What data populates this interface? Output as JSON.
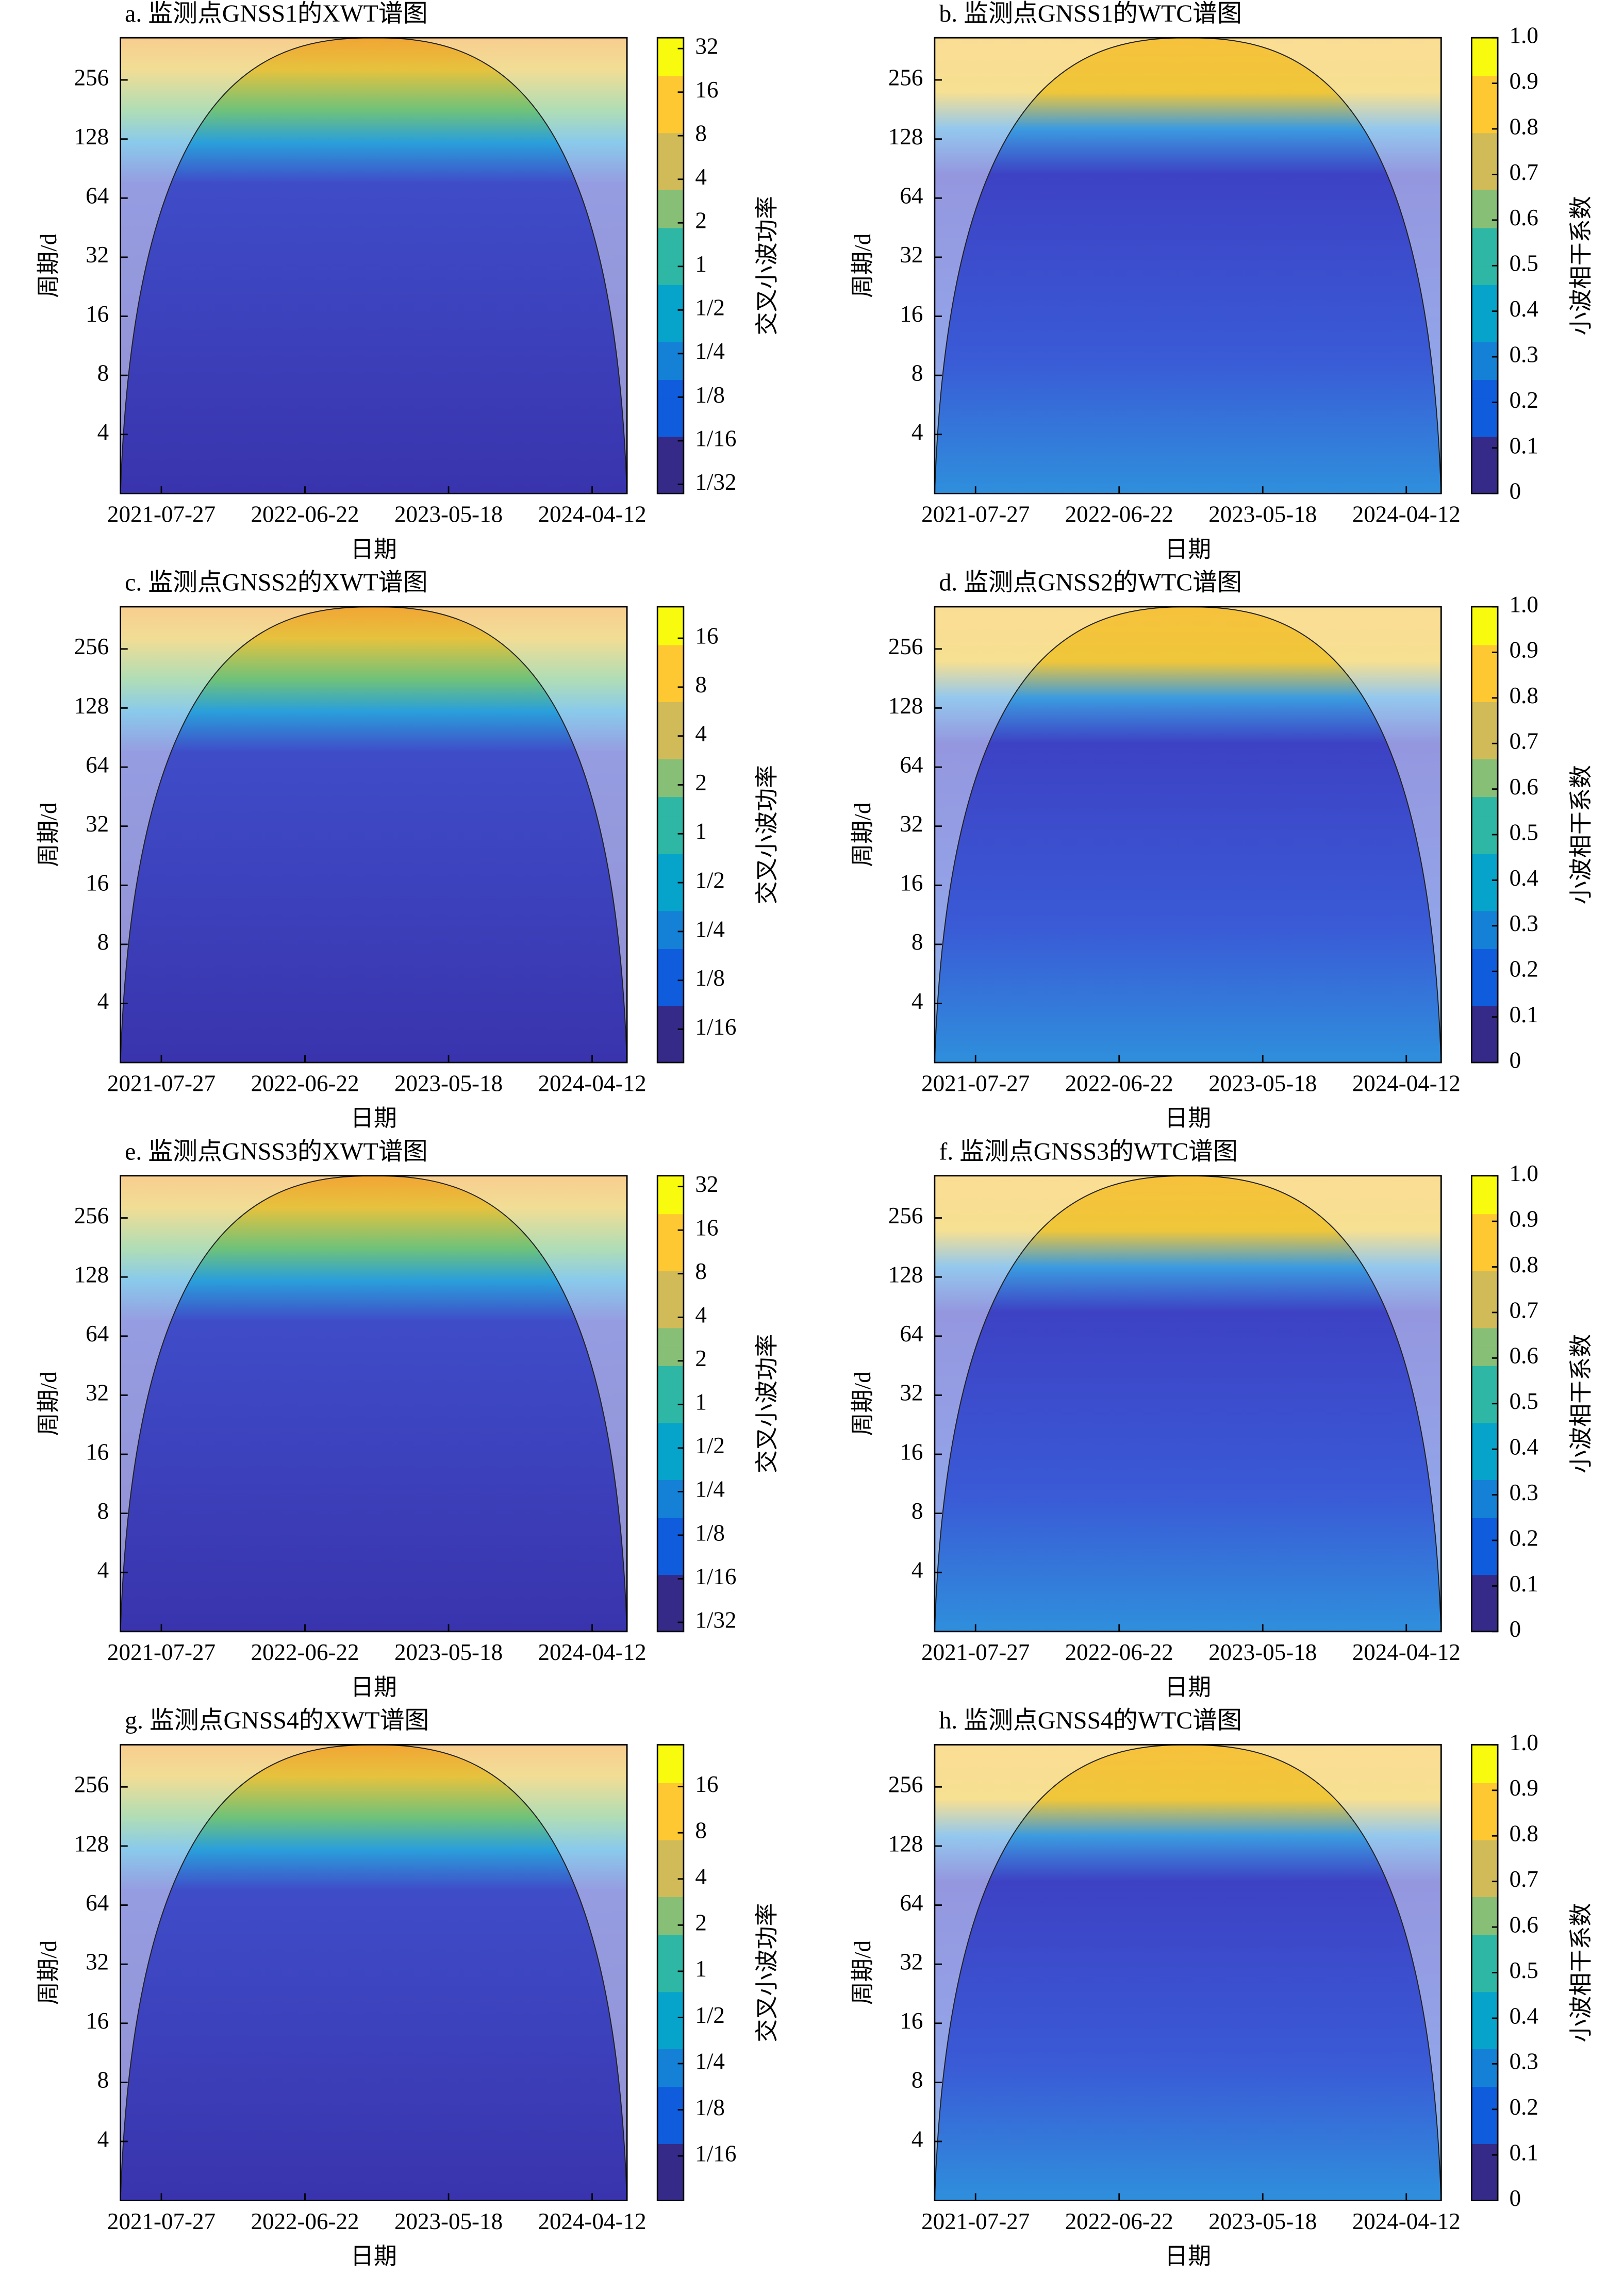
{
  "chart_data": [
    {
      "type": "heatmap",
      "title": "a. 监测点GNSS1的XWT谱图",
      "xlabel": "日期",
      "ylabel": "周期/d",
      "xlim": [
        "2021-04-24",
        "2024-07-01"
      ],
      "xticks": [
        "2021-07-27",
        "2022-06-22",
        "2023-05-18",
        "2024-04-12"
      ],
      "ylim": [
        2,
        420
      ],
      "yticks": [
        4,
        8,
        16,
        32,
        64,
        128,
        256
      ],
      "yscale": "log2",
      "colorbar": {
        "label": "交叉小波功率",
        "scale": "log2",
        "lim": [
          0.027,
          38
        ],
        "ticks": [
          32,
          16,
          8,
          4,
          2,
          1,
          {
            "value": 0.5,
            "label": "1/2"
          },
          {
            "value": 0.25,
            "label": "1/4"
          },
          {
            "value": 0.125,
            "label": "1/8"
          },
          {
            "value": 0.0625,
            "label": "1/16"
          },
          {
            "value": 0.03125,
            "label": "1/32"
          }
        ]
      }
    },
    {
      "type": "heatmap",
      "title": "b. 监测点GNSS1的WTC谱图",
      "xlabel": "日期",
      "ylabel": "周期/d",
      "xlim": [
        "2021-04-24",
        "2024-07-01"
      ],
      "xticks": [
        "2021-07-27",
        "2022-06-22",
        "2023-05-18",
        "2024-04-12"
      ],
      "ylim": [
        2,
        420
      ],
      "yticks": [
        4,
        8,
        16,
        32,
        64,
        128,
        256
      ],
      "yscale": "log2",
      "colorbar": {
        "label": "小波相干系数",
        "scale": "linear",
        "lim": [
          0,
          1
        ],
        "ticks": [
          0,
          0.1,
          0.2,
          0.3,
          0.4,
          0.5,
          0.6,
          0.7,
          0.8,
          0.9,
          {
            "value": 1,
            "label": "1.0"
          }
        ]
      }
    },
    {
      "type": "heatmap",
      "title": "c. 监测点GNSS2的XWT谱图",
      "xlabel": "日期",
      "ylabel": "周期/d",
      "xlim": [
        "2021-04-24",
        "2024-07-01"
      ],
      "xticks": [
        "2021-07-27",
        "2022-06-22",
        "2023-05-18",
        "2024-04-12"
      ],
      "ylim": [
        2,
        420
      ],
      "yticks": [
        4,
        8,
        16,
        32,
        64,
        128,
        256
      ],
      "yscale": "log2",
      "colorbar": {
        "label": "交叉小波功率",
        "scale": "log2",
        "lim": [
          0.039,
          25
        ],
        "ticks": [
          16,
          8,
          4,
          2,
          1,
          {
            "value": 0.5,
            "label": "1/2"
          },
          {
            "value": 0.25,
            "label": "1/4"
          },
          {
            "value": 0.125,
            "label": "1/8"
          },
          {
            "value": 0.0625,
            "label": "1/16"
          }
        ]
      }
    },
    {
      "type": "heatmap",
      "title": "d. 监测点GNSS2的WTC谱图",
      "xlabel": "日期",
      "ylabel": "周期/d",
      "xlim": [
        "2021-04-24",
        "2024-07-01"
      ],
      "xticks": [
        "2021-07-27",
        "2022-06-22",
        "2023-05-18",
        "2024-04-12"
      ],
      "ylim": [
        2,
        420
      ],
      "yticks": [
        4,
        8,
        16,
        32,
        64,
        128,
        256
      ],
      "yscale": "log2",
      "colorbar": {
        "label": "小波相干系数",
        "scale": "linear",
        "lim": [
          0,
          1
        ],
        "ticks": [
          0,
          0.1,
          0.2,
          0.3,
          0.4,
          0.5,
          0.6,
          0.7,
          0.8,
          0.9,
          {
            "value": 1,
            "label": "1.0"
          }
        ]
      }
    },
    {
      "type": "heatmap",
      "title": "e. 监测点GNSS3的XWT谱图",
      "xlabel": "日期",
      "ylabel": "周期/d",
      "xlim": [
        "2021-04-24",
        "2024-07-01"
      ],
      "xticks": [
        "2021-07-27",
        "2022-06-22",
        "2023-05-18",
        "2024-04-12"
      ],
      "ylim": [
        2,
        420
      ],
      "yticks": [
        4,
        8,
        16,
        32,
        64,
        128,
        256
      ],
      "yscale": "log2",
      "colorbar": {
        "label": "交叉小波功率",
        "scale": "log2",
        "lim": [
          0.027,
          38
        ],
        "ticks": [
          32,
          16,
          8,
          4,
          2,
          1,
          {
            "value": 0.5,
            "label": "1/2"
          },
          {
            "value": 0.25,
            "label": "1/4"
          },
          {
            "value": 0.125,
            "label": "1/8"
          },
          {
            "value": 0.0625,
            "label": "1/16"
          },
          {
            "value": 0.03125,
            "label": "1/32"
          }
        ]
      }
    },
    {
      "type": "heatmap",
      "title": "f. 监测点GNSS3的WTC谱图",
      "xlabel": "日期",
      "ylabel": "周期/d",
      "xlim": [
        "2021-04-24",
        "2024-07-01"
      ],
      "xticks": [
        "2021-07-27",
        "2022-06-22",
        "2023-05-18",
        "2024-04-12"
      ],
      "ylim": [
        2,
        420
      ],
      "yticks": [
        4,
        8,
        16,
        32,
        64,
        128,
        256
      ],
      "yscale": "log2",
      "colorbar": {
        "label": "小波相干系数",
        "scale": "linear",
        "lim": [
          0,
          1
        ],
        "ticks": [
          0,
          0.1,
          0.2,
          0.3,
          0.4,
          0.5,
          0.6,
          0.7,
          0.8,
          0.9,
          {
            "value": 1,
            "label": "1.0"
          }
        ]
      }
    },
    {
      "type": "heatmap",
      "title": "g. 监测点GNSS4的XWT谱图",
      "xlabel": "日期",
      "ylabel": "周期/d",
      "xlim": [
        "2021-04-24",
        "2024-07-01"
      ],
      "xticks": [
        "2021-07-27",
        "2022-06-22",
        "2023-05-18",
        "2024-04-12"
      ],
      "ylim": [
        2,
        420
      ],
      "yticks": [
        4,
        8,
        16,
        32,
        64,
        128,
        256
      ],
      "yscale": "log2",
      "colorbar": {
        "label": "交叉小波功率",
        "scale": "log2",
        "lim": [
          0.032,
          30
        ],
        "ticks": [
          16,
          8,
          4,
          2,
          1,
          {
            "value": 0.5,
            "label": "1/2"
          },
          {
            "value": 0.25,
            "label": "1/4"
          },
          {
            "value": 0.125,
            "label": "1/8"
          },
          {
            "value": 0.0625,
            "label": "1/16"
          }
        ]
      }
    },
    {
      "type": "heatmap",
      "title": "h. 监测点GNSS4的WTC谱图",
      "xlabel": "日期",
      "ylabel": "周期/d",
      "xlim": [
        "2021-04-24",
        "2024-07-01"
      ],
      "xticks": [
        "2021-07-27",
        "2022-06-22",
        "2023-05-18",
        "2024-04-12"
      ],
      "ylim": [
        2,
        420
      ],
      "yticks": [
        4,
        8,
        16,
        32,
        64,
        128,
        256
      ],
      "yscale": "log2",
      "colorbar": {
        "label": "小波相干系数",
        "scale": "linear",
        "lim": [
          0,
          1
        ],
        "ticks": [
          0,
          0.1,
          0.2,
          0.3,
          0.4,
          0.5,
          0.6,
          0.7,
          0.8,
          0.9,
          {
            "value": 1,
            "label": "1.0"
          }
        ]
      }
    }
  ]
}
